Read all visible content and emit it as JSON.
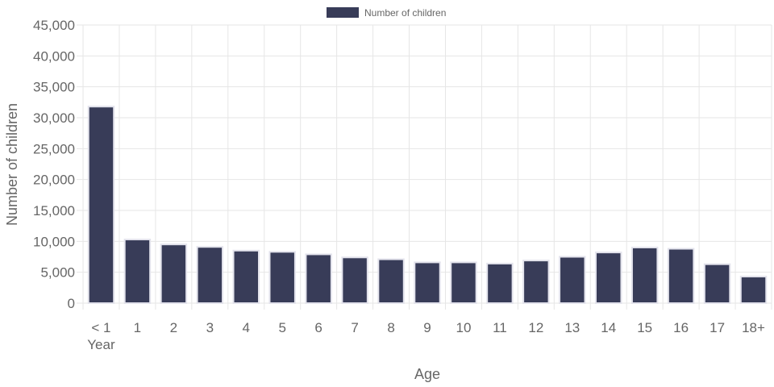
{
  "chart_data": {
    "type": "bar",
    "categories": [
      "< 1 Year",
      "1",
      "2",
      "3",
      "4",
      "5",
      "6",
      "7",
      "8",
      "9",
      "10",
      "11",
      "12",
      "13",
      "14",
      "15",
      "16",
      "17",
      "18+"
    ],
    "category_lines": [
      [
        "< 1",
        "Year"
      ],
      [
        "1"
      ],
      [
        "2"
      ],
      [
        "3"
      ],
      [
        "4"
      ],
      [
        "5"
      ],
      [
        "6"
      ],
      [
        "7"
      ],
      [
        "8"
      ],
      [
        "9"
      ],
      [
        "10"
      ],
      [
        "11"
      ],
      [
        "12"
      ],
      [
        "13"
      ],
      [
        "14"
      ],
      [
        "15"
      ],
      [
        "16"
      ],
      [
        "17"
      ],
      [
        "18+"
      ]
    ],
    "series": [
      {
        "name": "Number of children",
        "values": [
          31800,
          10300,
          9500,
          9100,
          8500,
          8300,
          7900,
          7400,
          7100,
          6600,
          6600,
          6400,
          6900,
          7500,
          8200,
          9000,
          8800,
          6300,
          4300
        ]
      }
    ],
    "xlabel": "Age",
    "ylabel": "Number of children",
    "ylim": [
      0,
      45000
    ],
    "yticks": [
      0,
      5000,
      10000,
      15000,
      20000,
      25000,
      30000,
      35000,
      40000,
      45000
    ],
    "ytick_labels": [
      "0",
      "5,000",
      "10,000",
      "15,000",
      "20,000",
      "25,000",
      "30,000",
      "35,000",
      "40,000",
      "45,000"
    ],
    "grid": true,
    "legend_position": "top-center",
    "colors": {
      "bar": "#383c58",
      "bar_border": "#e3e3ec",
      "grid": "#e6e6e6",
      "text": "#666666"
    }
  }
}
